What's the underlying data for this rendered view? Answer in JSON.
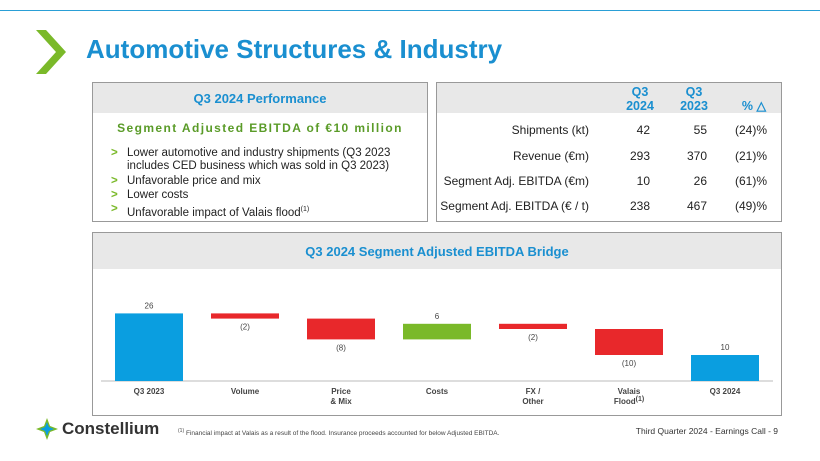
{
  "title": "Automotive Structures & Industry",
  "colors": {
    "accent": "#1a8fd0",
    "green": "#7ab929",
    "red": "#e8282b",
    "blue": "#0a9ee0"
  },
  "performance": {
    "header": "Q3 2024 Performance",
    "subtitle": "Segment Adjusted EBITDA of €10 million",
    "bullets": [
      "Lower automotive and industry shipments (Q3 2023 includes CED business which was sold in Q3 2023)",
      "Unfavorable price and mix",
      "Lower costs",
      "Unfavorable impact of Valais flood"
    ],
    "bullet_footnote_marker": "(1)"
  },
  "kpi_table": {
    "col1_line1": "Q3",
    "col1_line2": "2024",
    "col2_line1": "Q3",
    "col2_line2": "2023",
    "col3": "% △",
    "rows": [
      {
        "label": "Shipments (kt)",
        "q3_2024": "42",
        "q3_2023": "55",
        "pct": "(24)%"
      },
      {
        "label": "Revenue (€m)",
        "q3_2024": "293",
        "q3_2023": "370",
        "pct": "(21)%"
      },
      {
        "label": "Segment Adj. EBITDA (€m)",
        "q3_2024": "10",
        "q3_2023": "26",
        "pct": "(61)%"
      },
      {
        "label": "Segment Adj. EBITDA (€ / t)",
        "q3_2024": "238",
        "q3_2023": "467",
        "pct": "(49)%"
      }
    ]
  },
  "bridge_title": "Q3 2024 Segment Adjusted EBITDA Bridge",
  "chart_data": {
    "type": "bar",
    "subtype": "waterfall",
    "title": "Q3 2024 Segment Adjusted EBITDA Bridge",
    "categories": [
      "Q3 2023",
      "Volume",
      "Price & Mix",
      "Costs",
      "FX / Other",
      "Valais Flood",
      "Q3 2024"
    ],
    "category_lines": [
      [
        "Q3 2023"
      ],
      [
        "Volume"
      ],
      [
        "Price",
        "& Mix"
      ],
      [
        "Costs"
      ],
      [
        "FX /",
        "Other"
      ],
      [
        "Valais",
        "Flood"
      ],
      [
        "Q3 2024"
      ]
    ],
    "category_superscripts": [
      "",
      "",
      "",
      "",
      "",
      "(1)",
      ""
    ],
    "values": [
      26,
      -2,
      -8,
      6,
      -2,
      -10,
      10
    ],
    "kinds": [
      "total",
      "delta",
      "delta",
      "delta",
      "delta",
      "delta",
      "total"
    ],
    "data_labels": [
      "26",
      "(2)",
      "(8)",
      "6",
      "(2)",
      "(10)",
      "10"
    ],
    "ylim": [
      0,
      30
    ],
    "xlabel": "",
    "ylabel": ""
  },
  "footer": {
    "logo_text": "Constellium",
    "footnote_marker": "(1)",
    "footnote": "Financial impact at Valais as a result of the flood. Insurance proceeds accounted for below Adjusted EBITDA.",
    "page_info": "Third Quarter 2024 -  Earnings Call - 9"
  }
}
